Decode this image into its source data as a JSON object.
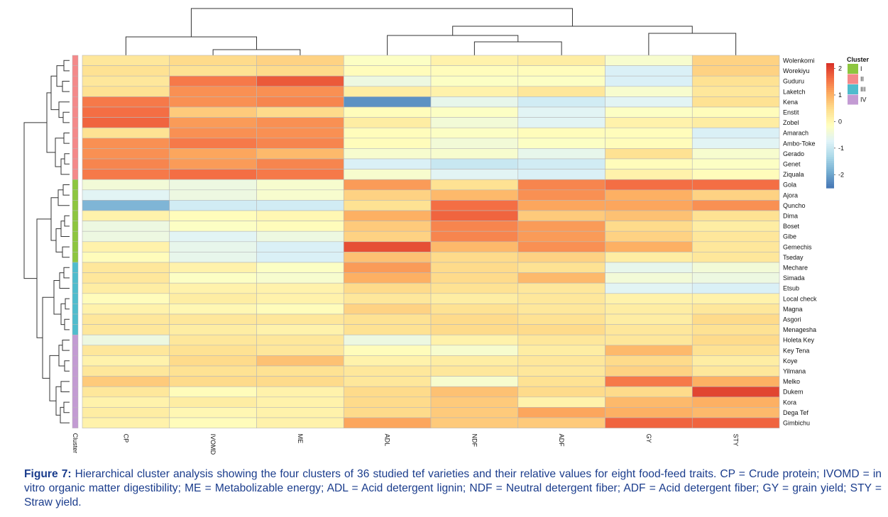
{
  "colors": {
    "scale": [
      "#4575b4",
      "#74add1",
      "#abd9e9",
      "#e0f3f8",
      "#ffffbf",
      "#fee090",
      "#fdae61",
      "#f46d43",
      "#d73027"
    ],
    "cluster": {
      "I": "#8dc63f",
      "II": "#f4898a",
      "III": "#4fbccd",
      "IV": "#c39bd3"
    },
    "caption_text": "#1a3c8c"
  },
  "caption": {
    "label": "Figure 7:",
    "text": "Hierarchical cluster analysis showing the four clusters of 36 studied tef varieties and their relative values for eight food-feed traits. CP = Crude protein; IVOMD = in vitro organic matter digestibility; ME = Metabolizable energy; ADL = Acid detergent lignin; NDF = Neutral detergent fiber; ADF = Acid detergent fiber; GY = grain yield; STY = Straw yield."
  },
  "chart_data": {
    "type": "heatmap",
    "columns": [
      "CP",
      "IVOMD",
      "ME",
      "ADL",
      "NDF",
      "ADF",
      "GY",
      "STY"
    ],
    "cluster_axis_label": "Cluster",
    "legend": {
      "title": "Cluster",
      "clusters": [
        "I",
        "II",
        "III",
        "IV"
      ],
      "scale_ticks": [
        2,
        1,
        0,
        -1,
        -2
      ],
      "scale_range": [
        -2.5,
        2.2
      ]
    },
    "rows": [
      {
        "name": "Wolenkomi",
        "cluster": "II",
        "values": [
          0.3,
          0.5,
          0.6,
          -0.2,
          0.1,
          0.2,
          -0.3,
          0.6
        ]
      },
      {
        "name": "Worekiyu",
        "cluster": "II",
        "values": [
          0.4,
          0.4,
          0.5,
          -0.1,
          -0.1,
          -0.1,
          -0.8,
          0.6
        ]
      },
      {
        "name": "Guduru",
        "cluster": "II",
        "values": [
          0.3,
          1.5,
          1.8,
          -0.5,
          -0.2,
          -0.2,
          -0.8,
          0.4
        ]
      },
      {
        "name": "Laketch",
        "cluster": "II",
        "values": [
          0.4,
          1.3,
          1.3,
          0.2,
          0.1,
          0.3,
          -0.3,
          0.3
        ]
      },
      {
        "name": "Kena",
        "cluster": "II",
        "values": [
          1.5,
          1.3,
          1.4,
          -2.2,
          -0.6,
          -0.9,
          -0.7,
          0.4
        ]
      },
      {
        "name": "Enstit",
        "cluster": "II",
        "values": [
          1.6,
          0.7,
          0.5,
          -0.1,
          -0.2,
          -0.7,
          -0.2,
          -0.1
        ]
      },
      {
        "name": "Zobel",
        "cluster": "II",
        "values": [
          1.7,
          1.2,
          1.3,
          0.2,
          -0.4,
          -0.7,
          0.1,
          0.2
        ]
      },
      {
        "name": "Amarach",
        "cluster": "II",
        "values": [
          0.4,
          1.3,
          1.3,
          -0.1,
          -0.2,
          -0.1,
          -0.1,
          -0.8
        ]
      },
      {
        "name": "Ambo-Toke",
        "cluster": "II",
        "values": [
          1.3,
          1.5,
          1.4,
          -0.1,
          -0.4,
          -0.2,
          -0.1,
          -0.7
        ]
      },
      {
        "name": "Gerado",
        "cluster": "II",
        "values": [
          1.3,
          1.1,
          0.9,
          -0.3,
          -0.3,
          -0.6,
          0.4,
          -0.3
        ]
      },
      {
        "name": "Genet",
        "cluster": "II",
        "values": [
          1.4,
          1.2,
          1.4,
          -0.8,
          -1.0,
          -0.9,
          -0.1,
          -0.2
        ]
      },
      {
        "name": "Ziquala",
        "cluster": "II",
        "values": [
          1.5,
          1.6,
          1.5,
          -0.3,
          -0.7,
          -0.8,
          0.1,
          -0.1
        ]
      },
      {
        "name": "Gola",
        "cluster": "I",
        "values": [
          -0.4,
          -0.5,
          -0.3,
          1.2,
          0.4,
          1.4,
          1.6,
          1.6
        ]
      },
      {
        "name": "Ajora",
        "cluster": "I",
        "values": [
          -0.7,
          -0.5,
          -0.3,
          0.6,
          0.9,
          1.3,
          1.0,
          0.6
        ]
      },
      {
        "name": "Quncho",
        "cluster": "I",
        "values": [
          -1.8,
          -0.9,
          -0.9,
          0.4,
          1.6,
          1.1,
          1.1,
          1.3
        ]
      },
      {
        "name": "Dima",
        "cluster": "I",
        "values": [
          0.1,
          -0.1,
          0.0,
          1.0,
          1.7,
          0.7,
          0.8,
          0.4
        ]
      },
      {
        "name": "Boset",
        "cluster": "I",
        "values": [
          -0.5,
          -0.2,
          -0.1,
          0.7,
          1.4,
          1.2,
          0.5,
          0.2
        ]
      },
      {
        "name": "Gibe",
        "cluster": "I",
        "values": [
          -0.5,
          -0.7,
          -0.5,
          0.6,
          1.4,
          1.2,
          0.6,
          0.3
        ]
      },
      {
        "name": "Gemechis",
        "cluster": "I",
        "values": [
          0.1,
          -0.6,
          -0.8,
          1.9,
          0.9,
          1.3,
          1.0,
          0.3
        ]
      },
      {
        "name": "Tseday",
        "cluster": "I",
        "values": [
          -0.1,
          -0.6,
          -0.8,
          0.8,
          0.5,
          0.6,
          0.2,
          0.3
        ]
      },
      {
        "name": "Mechare",
        "cluster": "III",
        "values": [
          0.3,
          0.1,
          -0.2,
          1.2,
          0.5,
          0.4,
          -0.6,
          -0.4
        ]
      },
      {
        "name": "Simada",
        "cluster": "III",
        "values": [
          0.3,
          -0.2,
          -0.3,
          1.0,
          0.5,
          0.9,
          -0.4,
          -0.5
        ]
      },
      {
        "name": "Etsub",
        "cluster": "III",
        "values": [
          0.2,
          0.1,
          0.1,
          0.5,
          0.4,
          0.3,
          -0.7,
          -0.8
        ]
      },
      {
        "name": "Local check",
        "cluster": "III",
        "values": [
          -0.1,
          0.2,
          0.1,
          0.3,
          0.2,
          0.3,
          0.1,
          0.1
        ]
      },
      {
        "name": "Magna",
        "cluster": "III",
        "values": [
          0.1,
          0.0,
          -0.1,
          0.6,
          0.4,
          0.3,
          0.2,
          0.3
        ]
      },
      {
        "name": "Asgori",
        "cluster": "III",
        "values": [
          0.3,
          0.3,
          0.3,
          0.4,
          0.5,
          0.4,
          0.2,
          0.5
        ]
      },
      {
        "name": "Menagesha",
        "cluster": "III",
        "values": [
          0.3,
          0.2,
          0.1,
          0.4,
          0.5,
          0.5,
          0.3,
          0.4
        ]
      },
      {
        "name": "Holeta Key",
        "cluster": "IV",
        "values": [
          -0.5,
          0.3,
          0.3,
          -0.5,
          0.1,
          0.3,
          0.3,
          0.5
        ]
      },
      {
        "name": "Key Tena",
        "cluster": "IV",
        "values": [
          0.3,
          0.4,
          0.3,
          -0.1,
          -0.3,
          0.2,
          0.9,
          0.4
        ]
      },
      {
        "name": "Koye",
        "cluster": "IV",
        "values": [
          0.1,
          0.5,
          0.8,
          0.1,
          0.2,
          0.3,
          0.5,
          0.2
        ]
      },
      {
        "name": "Yilmana",
        "cluster": "IV",
        "values": [
          0.3,
          0.4,
          0.4,
          0.3,
          0.3,
          0.3,
          0.6,
          0.3
        ]
      },
      {
        "name": "Melko",
        "cluster": "IV",
        "values": [
          0.7,
          0.5,
          0.5,
          0.3,
          -0.3,
          0.4,
          1.5,
          1.0
        ]
      },
      {
        "name": "Dukem",
        "cluster": "IV",
        "values": [
          0.3,
          -0.1,
          0.1,
          0.5,
          0.8,
          0.5,
          0.5,
          2.0
        ]
      },
      {
        "name": "Kora",
        "cluster": "IV",
        "values": [
          0.1,
          0.2,
          0.1,
          0.5,
          0.7,
          0.1,
          0.9,
          1.0
        ]
      },
      {
        "name": "Dega Tef",
        "cluster": "IV",
        "values": [
          0.2,
          0.0,
          0.1,
          0.5,
          0.7,
          1.1,
          1.0,
          0.9
        ]
      },
      {
        "name": "Gimbichu",
        "cluster": "IV",
        "values": [
          0.1,
          -0.1,
          0.1,
          1.1,
          0.7,
          0.7,
          1.7,
          1.7
        ]
      }
    ]
  }
}
